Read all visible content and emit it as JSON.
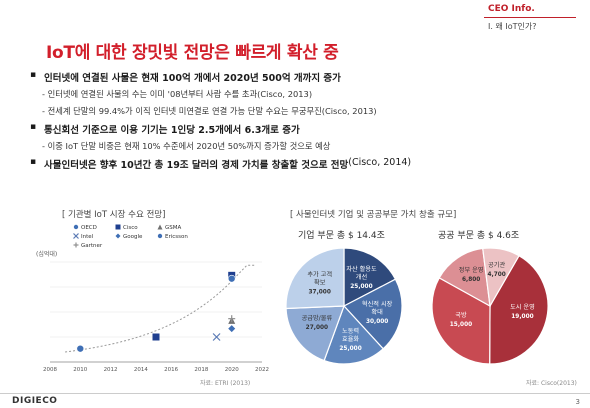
{
  "header": {
    "company": "CEO Info.",
    "section": "I. 왜 IoT인가?"
  },
  "title": "IoT에 대한 장밋빛 전망은 빠르게 확산 중",
  "bullets": [
    {
      "main": "인터넷에 연결된 사물은 현재 100억 개에서 2020년 500억 개까지 증가",
      "suffix": ""
    },
    {
      "sub": "- 인터넷에 연결된 사물의 수는 이미 '08년부터 사람 수를 초과(Cisco, 2013)"
    },
    {
      "sub": "- 전세계 단말의 99.4%가 이직 인터넷 미연결로 연결 가능 단말 수요는 무궁무진(Cisco, 2013)"
    },
    {
      "main": "통신회선 기준으로 이용 기기는 1인당 2.5개에서 6.3개로 증가",
      "suffix": ""
    },
    {
      "sub": "- 이중 IoT 단말 비중은 현재 10% 수준에서 2020년 50%까지 증가할 것으로 예상"
    },
    {
      "main": "사물인터넷은 향후 10년간 총 19조 달러의 경제 가치를 창출할 것으로 전망",
      "suffix": "(Cisco, 2014)"
    }
  ],
  "left_chart": {
    "heading": "[ 기관별 IoT 시장 수요 전망]",
    "source": "자료: ETRI (2013)",
    "y_unit": "(십억대)"
  },
  "right_chart": {
    "heading": "[ 사물인터넷 기업 및 공공부문 가치 창출 규모]",
    "source": "자료: Cisco(2013)",
    "pie1_title": "기업 부문 총 $ 14.4조",
    "pie2_title": "공공 부문 총 $ 4.6조"
  },
  "chart_data": [
    {
      "type": "scatter",
      "title": "[ 기관별 IoT 시장 수요 전망]",
      "xlabel": "",
      "ylabel": "(십억대)",
      "xlim": [
        2008,
        2022
      ],
      "x_ticks": [
        "2008",
        "2010",
        "2012",
        "2014",
        "2016",
        "2018",
        "2020",
        "2022"
      ],
      "legend_position": "top",
      "series": [
        {
          "name": "OECD",
          "marker": "circle",
          "color": "#3f6fb5",
          "points": [
            [
              2010,
              8
            ],
            [
              2020,
              50
            ]
          ]
        },
        {
          "name": "Cisco",
          "marker": "square",
          "color": "#1f3f8f",
          "points": [
            [
              2015,
              15
            ],
            [
              2020,
              52
            ]
          ]
        },
        {
          "name": "GSMA",
          "marker": "triangle",
          "color": "#707070",
          "points": [
            [
              2020,
              25
            ]
          ]
        },
        {
          "name": "Intel",
          "marker": "x",
          "color": "#5a7ab5",
          "points": [
            [
              2019,
              15
            ]
          ]
        },
        {
          "name": "Google",
          "marker": "diamond",
          "color": "#3f6fb5",
          "points": [
            [
              2020,
              20
            ]
          ]
        },
        {
          "name": "Ericsson",
          "marker": "circle",
          "color": "#3f6fb5",
          "points": [
            [
              2020,
              50
            ]
          ]
        },
        {
          "name": "Gartner",
          "marker": "plus",
          "color": "#909090",
          "points": [
            [
              2020,
              26
            ]
          ]
        }
      ]
    },
    {
      "type": "pie",
      "title": "기업 부문 총 $ 14.4조",
      "slices": [
        {
          "label": "자산 활용도 개선",
          "value": 25000,
          "value_label": "25,000",
          "color": "#2f4a7c"
        },
        {
          "label": "혁신적 시장 확대",
          "value": 30000,
          "value_label": "30,000",
          "color": "#4a6fa8"
        },
        {
          "label": "노동력 효율화",
          "value": 25000,
          "value_label": "25,000",
          "color": "#5f86bd"
        },
        {
          "label": "공급망/물류",
          "value": 27000,
          "value_label": "27,000",
          "color": "#8eaad4"
        },
        {
          "label": "추가 고객 확보",
          "value": 37000,
          "value_label": "37,000",
          "color": "#bcd0ea"
        }
      ]
    },
    {
      "type": "pie",
      "title": "공공 부문 총 $ 4.6조",
      "slices": [
        {
          "label": "도시 운영",
          "value": 19000,
          "value_label": "19,000",
          "color": "#a8303a"
        },
        {
          "label": "국방",
          "value": 15000,
          "value_label": "15,000",
          "color": "#c84a52"
        },
        {
          "label": "정부 운영",
          "value": 6800,
          "value_label": "6,800",
          "color": "#dc8f94"
        },
        {
          "label": "공기관",
          "value": 4700,
          "value_label": "4,700",
          "color": "#ecc2c4"
        }
      ]
    }
  ],
  "footer": {
    "logo": "DIGIECO",
    "page": "3"
  }
}
